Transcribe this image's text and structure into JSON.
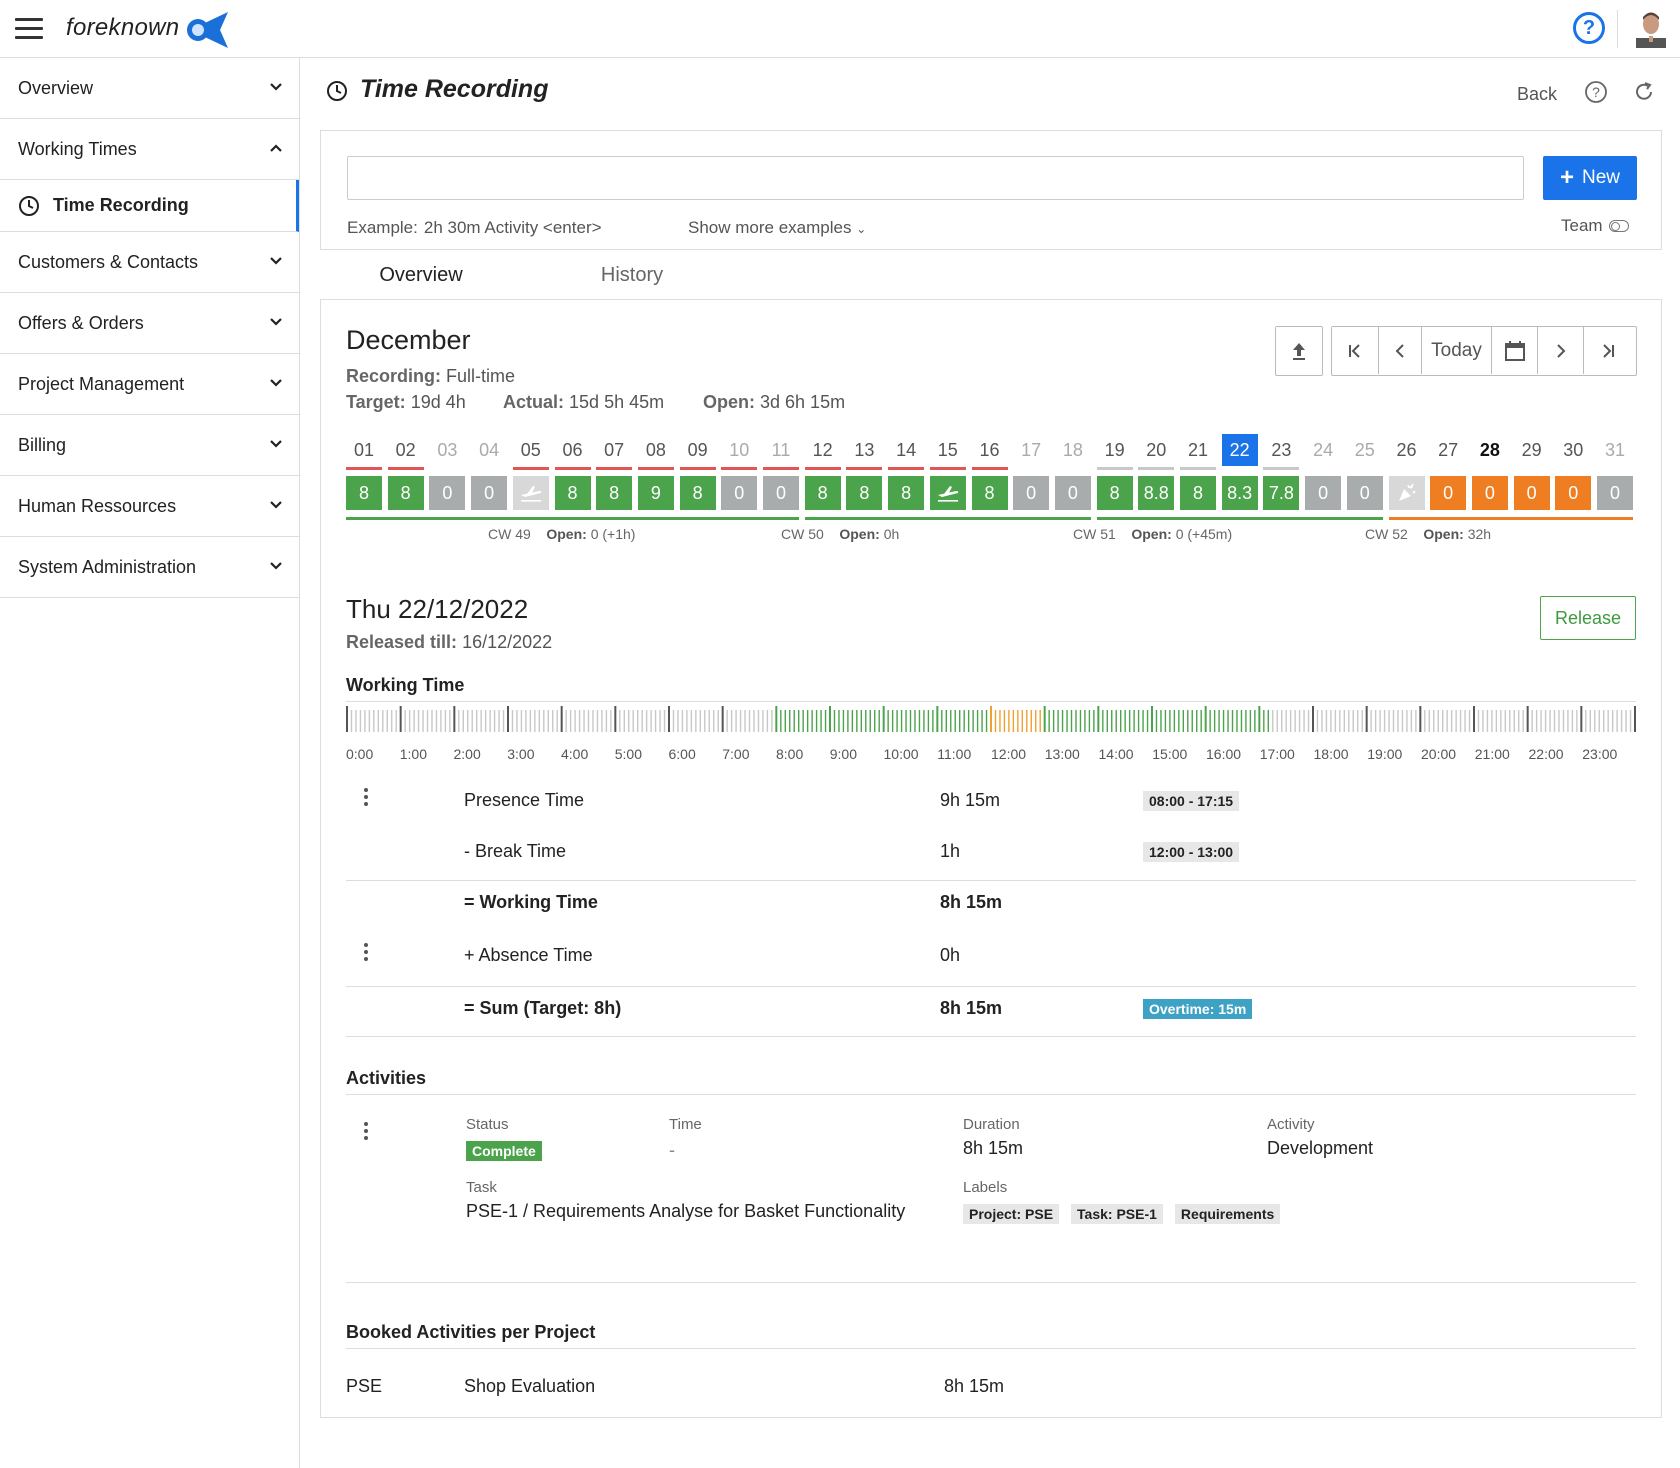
{
  "app": {
    "name": "foreknown"
  },
  "sidebar": {
    "items": [
      {
        "label": "Overview"
      },
      {
        "label": "Working Times"
      },
      {
        "label": "Time Recording"
      },
      {
        "label": "Customers & Contacts"
      },
      {
        "label": "Offers & Orders"
      },
      {
        "label": "Project Management"
      },
      {
        "label": "Billing"
      },
      {
        "label": "Human Ressources"
      },
      {
        "label": "System Administration"
      }
    ]
  },
  "page": {
    "title": "Time Recording",
    "back_label": "Back"
  },
  "quick_entry": {
    "value": "",
    "new_label": "New",
    "example_label": "Example:",
    "example_value": "2h 30m Activity <enter>",
    "show_more": "Show more examples",
    "team_label": "Team"
  },
  "tabs": [
    {
      "label": "Overview"
    },
    {
      "label": "History"
    }
  ],
  "month": {
    "name": "December",
    "recording_label": "Recording:",
    "recording_value": "Full-time",
    "target_label": "Target:",
    "target_value": "19d 4h",
    "actual_label": "Actual:",
    "actual_value": "15d 5h 45m",
    "open_label": "Open:",
    "open_value": "3d 6h 15m",
    "today_label": "Today",
    "days": [
      {
        "num": "01",
        "val": "8",
        "kind": "green",
        "bar": "red",
        "num_style": "normal"
      },
      {
        "num": "02",
        "val": "8",
        "kind": "green",
        "bar": "red",
        "num_style": "normal"
      },
      {
        "num": "03",
        "val": "0",
        "kind": "gray",
        "bar": "none",
        "num_style": "weekend"
      },
      {
        "num": "04",
        "val": "0",
        "kind": "gray",
        "bar": "none",
        "num_style": "weekend"
      },
      {
        "num": "05",
        "val": "",
        "icon": "plane-icon",
        "kind": "lightgray",
        "bar": "red",
        "num_style": "normal"
      },
      {
        "num": "06",
        "val": "8",
        "kind": "green",
        "bar": "red",
        "num_style": "normal"
      },
      {
        "num": "07",
        "val": "8",
        "kind": "green",
        "bar": "red",
        "num_style": "normal"
      },
      {
        "num": "08",
        "val": "9",
        "kind": "green",
        "bar": "red",
        "num_style": "normal"
      },
      {
        "num": "09",
        "val": "8",
        "kind": "green",
        "bar": "red",
        "num_style": "normal"
      },
      {
        "num": "10",
        "val": "0",
        "kind": "gray",
        "bar": "red",
        "num_style": "weekend"
      },
      {
        "num": "11",
        "val": "0",
        "kind": "gray",
        "bar": "red",
        "num_style": "weekend"
      },
      {
        "num": "12",
        "val": "8",
        "kind": "green",
        "bar": "red",
        "num_style": "normal"
      },
      {
        "num": "13",
        "val": "8",
        "kind": "green",
        "bar": "red",
        "num_style": "normal"
      },
      {
        "num": "14",
        "val": "8",
        "kind": "green",
        "bar": "red",
        "num_style": "normal"
      },
      {
        "num": "15",
        "val": "",
        "icon": "plane-icon",
        "kind": "green",
        "bar": "red",
        "num_style": "normal"
      },
      {
        "num": "16",
        "val": "8",
        "kind": "green",
        "bar": "red",
        "num_style": "normal"
      },
      {
        "num": "17",
        "val": "0",
        "kind": "gray",
        "bar": "none",
        "num_style": "weekend"
      },
      {
        "num": "18",
        "val": "0",
        "kind": "gray",
        "bar": "none",
        "num_style": "weekend"
      },
      {
        "num": "19",
        "val": "8",
        "kind": "green",
        "bar": "gray",
        "num_style": "normal"
      },
      {
        "num": "20",
        "val": "8.8",
        "kind": "green",
        "bar": "gray",
        "num_style": "normal"
      },
      {
        "num": "21",
        "val": "8",
        "kind": "green",
        "bar": "gray",
        "num_style": "normal"
      },
      {
        "num": "22",
        "val": "8.3",
        "kind": "green",
        "bar": "none",
        "num_style": "today"
      },
      {
        "num": "23",
        "val": "7.8",
        "kind": "green",
        "bar": "gray",
        "num_style": "normal"
      },
      {
        "num": "24",
        "val": "0",
        "kind": "gray",
        "bar": "none",
        "num_style": "weekend"
      },
      {
        "num": "25",
        "val": "0",
        "kind": "gray",
        "bar": "none",
        "num_style": "weekend"
      },
      {
        "num": "26",
        "val": "",
        "icon": "party-popper-icon",
        "kind": "lightgray",
        "bar": "none",
        "num_style": "normal"
      },
      {
        "num": "27",
        "val": "0",
        "kind": "orange",
        "bar": "none",
        "num_style": "normal"
      },
      {
        "num": "28",
        "val": "0",
        "kind": "orange",
        "bar": "none",
        "num_style": "bold"
      },
      {
        "num": "29",
        "val": "0",
        "kind": "orange",
        "bar": "none",
        "num_style": "normal"
      },
      {
        "num": "30",
        "val": "0",
        "kind": "orange",
        "bar": "none",
        "num_style": "normal"
      },
      {
        "num": "31",
        "val": "0",
        "kind": "gray",
        "bar": "none",
        "num_style": "weekend"
      }
    ],
    "weeks": [
      {
        "cw": "CW 49",
        "open_label": "Open:",
        "open": "0 (+1h)",
        "color": "green"
      },
      {
        "cw": "CW 50",
        "open_label": "Open:",
        "open": "0h",
        "color": "green"
      },
      {
        "cw": "CW 51",
        "open_label": "Open:",
        "open": "0 (+45m)",
        "color": "green"
      },
      {
        "cw": "CW 52",
        "open_label": "Open:",
        "open": "32h",
        "color": "orange"
      }
    ]
  },
  "day": {
    "title": "Thu 22/12/2022",
    "released_label": "Released till:",
    "released_value": "16/12/2022",
    "release_button": "Release",
    "working_time_title": "Working Time",
    "hours": [
      "0:00",
      "1:00",
      "2:00",
      "3:00",
      "4:00",
      "5:00",
      "6:00",
      "7:00",
      "8:00",
      "9:00",
      "10:00",
      "11:00",
      "12:00",
      "13:00",
      "14:00",
      "15:00",
      "16:00",
      "17:00",
      "18:00",
      "19:00",
      "20:00",
      "21:00",
      "22:00",
      "23:00"
    ],
    "work_start_hour": 8,
    "work_end_hour": 17.25,
    "break_start_hour": 12,
    "break_end_hour": 13,
    "rows": [
      {
        "label": "Presence Time",
        "value": "9h 15m",
        "tag": "08:00 - 17:15"
      },
      {
        "label": "- Break Time",
        "value": "1h",
        "tag": "12:00 - 13:00"
      },
      {
        "label": "= Working Time",
        "value": "8h 15m",
        "tag": ""
      },
      {
        "label": "+ Absence Time",
        "value": "0h",
        "tag": ""
      },
      {
        "label": "= Sum (Target: 8h)",
        "value": "8h 15m",
        "tag": "Overtime: 15m"
      }
    ]
  },
  "activities": {
    "title": "Activities",
    "status_label": "Status",
    "status_value": "Complete",
    "time_label": "Time",
    "time_value": "-",
    "duration_label": "Duration",
    "duration_value": "8h 15m",
    "activity_label": "Activity",
    "activity_value": "Development",
    "task_label": "Task",
    "task_value": "PSE-1 / Requirements Analyse for Basket Functionality",
    "labels_label": "Labels",
    "labels": [
      "Project: PSE",
      "Task: PSE-1",
      "Requirements"
    ]
  },
  "booked": {
    "title": "Booked Activities per Project",
    "rows": [
      {
        "code": "PSE",
        "name": "Shop Evaluation",
        "value": "8h 15m"
      }
    ]
  },
  "colors": {
    "accent": "#1a73e8",
    "green": "#4ba34b",
    "gray": "#a9acad",
    "orange": "#ef7d22",
    "red": "#e05555",
    "break": "#f0a030",
    "overtime": "#3ea2c5"
  }
}
